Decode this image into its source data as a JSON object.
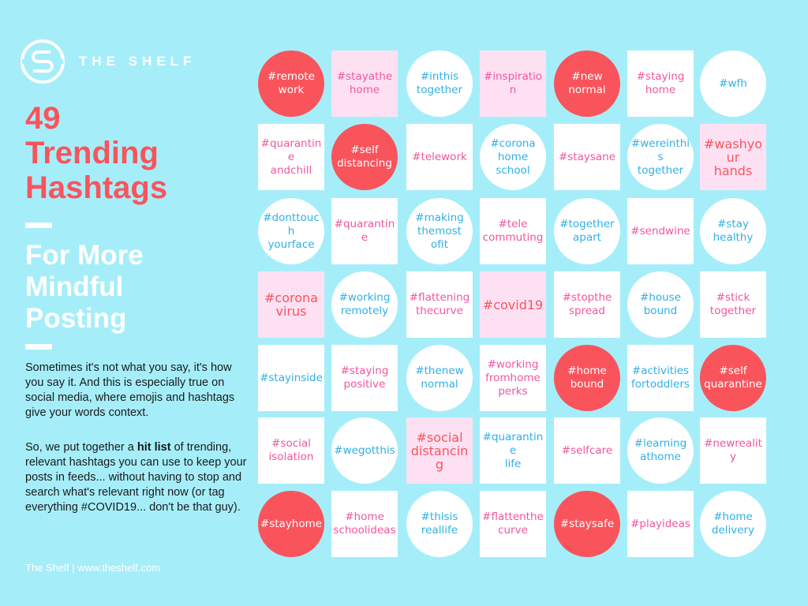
{
  "brand": {
    "name": "THE SHELF"
  },
  "title": {
    "line1": "49",
    "line2": "Trending",
    "line3": "Hashtags"
  },
  "subtitle": {
    "line1": "For More",
    "line2": "Mindful",
    "line3": "Posting"
  },
  "body": {
    "p1": "Sometimes it's not what you say, it's how you say it. And this is especially true on social media, where emojis and hashtags give your words context.",
    "p2_before": "So, we put together a ",
    "p2_bold": "hit list",
    "p2_after": " of trending, relevant hashtags you can use to keep your posts in feeds... without having to stop and search what's relevant right now (or tag everything #COVID19... don't be that guy)."
  },
  "footer": "The Shelf | www.theshelf.com",
  "colors": {
    "background": "#a5eef9",
    "red": "#f9545c",
    "pink_bg": "#fde1f3",
    "blue_text": "#2fb0e6",
    "pink_text": "#f0569f"
  },
  "hashtags": [
    [
      "#remote\nwork",
      "#stayathe\nhome",
      "#inthis\ntogether",
      "#inspiration",
      "#new\nnormal",
      "#staying\nhome",
      "#wfh"
    ],
    [
      "#quarantine\nandchill",
      "#self\ndistancing",
      "#telework",
      "#corona\nhome\nschool",
      "#staysane",
      "#wereinthis\ntogether",
      "#washyour\nhands"
    ],
    [
      "#donttouch\nyourface",
      "#quarantine",
      "#making\nthemost\nofit",
      "#tele\ncommuting",
      "#together\napart",
      "#sendwine",
      "#stay\nhealthy"
    ],
    [
      "#corona\nvirus",
      "#working\nremotely",
      "#flattening\nthecurve",
      "#covid19",
      "#stopthe\nspread",
      "#house\nbound",
      "#stick\ntogether"
    ],
    [
      "#stayinside",
      "#staying\npositive",
      "#thenew\nnormal",
      "#working\nfromhome\nperks",
      "#home\nbound",
      "#activities\nfortoddlers",
      "#self\nquarantine"
    ],
    [
      "#social\nisolation",
      "#wegotthis",
      "#social\ndistancing",
      "#quarantine\nlife",
      "#selfcare",
      "#learning\nathome",
      "#newreality"
    ],
    [
      "#stayhome",
      "#home\nschoolideas",
      "#thisis\nreallife",
      "#flattenthe\ncurve",
      "#staysafe",
      "#playideas",
      "#home\ndelivery"
    ]
  ]
}
